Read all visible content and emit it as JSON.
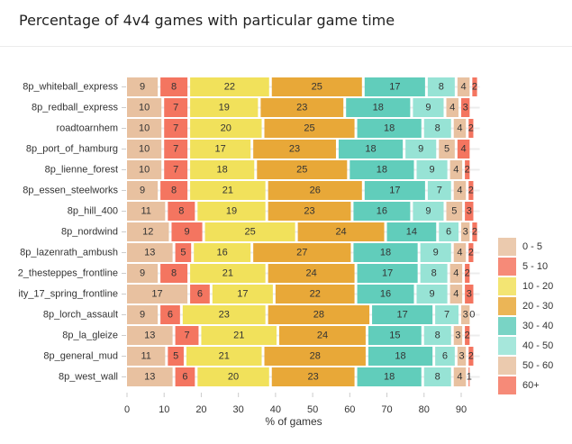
{
  "chart_data": {
    "type": "bar",
    "orientation": "horizontal",
    "stacked": true,
    "title": "Percentage of 4v4 games with particular game time",
    "xlabel": "% of games",
    "ylabel": "",
    "xlim": [
      0,
      95
    ],
    "x_ticks": [
      0,
      10,
      20,
      30,
      40,
      50,
      60,
      70,
      80,
      90
    ],
    "grid": true,
    "legend": "right",
    "categories": [
      "8p_whiteball_express",
      "8p_redball_express",
      "roadtoarnhem",
      "8p_port_of_hamburg",
      "8p_lienne_forest",
      "8p_essen_steelworks",
      "8p_hill_400",
      "8p_nordwind",
      "8p_lazenrath_ambush",
      "2_thesteppes_frontline",
      "ity_17_spring_frontline",
      "8p_lorch_assault",
      "8p_la_gleize",
      "8p_general_mud",
      "8p_west_wall"
    ],
    "series": [
      {
        "name": "0 - 5",
        "color": "#e8c1a0",
        "values": [
          9,
          10,
          10,
          10,
          10,
          9,
          11,
          12,
          13,
          9,
          17,
          9,
          13,
          11,
          13
        ]
      },
      {
        "name": "5 - 10",
        "color": "#f47560",
        "values": [
          8,
          7,
          7,
          7,
          7,
          8,
          8,
          9,
          5,
          8,
          6,
          6,
          7,
          5,
          6
        ]
      },
      {
        "name": "10 - 20",
        "color": "#f1e15b",
        "values": [
          22,
          19,
          20,
          17,
          18,
          21,
          19,
          25,
          16,
          21,
          17,
          23,
          21,
          21,
          20
        ]
      },
      {
        "name": "20 - 30",
        "color": "#e8a838",
        "values": [
          25,
          23,
          25,
          23,
          25,
          26,
          23,
          24,
          27,
          24,
          22,
          28,
          24,
          28,
          23
        ]
      },
      {
        "name": "30 - 40",
        "color": "#61cdbb",
        "values": [
          17,
          18,
          18,
          18,
          18,
          17,
          16,
          14,
          18,
          17,
          16,
          17,
          15,
          18,
          18
        ]
      },
      {
        "name": "40 - 50",
        "color": "#97e3d5",
        "values": [
          8,
          9,
          8,
          9,
          9,
          7,
          9,
          6,
          9,
          8,
          9,
          7,
          8,
          6,
          8
        ]
      },
      {
        "name": "50 - 60",
        "color": "#e8c1a0",
        "values": [
          4,
          4,
          4,
          5,
          4,
          4,
          5,
          3,
          4,
          4,
          4,
          3,
          3,
          3,
          4
        ]
      },
      {
        "name": "60+",
        "color": "#f47560",
        "values": [
          2,
          3,
          2,
          4,
          2,
          2,
          3,
          2,
          2,
          2,
          3,
          0,
          2,
          2,
          1
        ]
      }
    ]
  }
}
